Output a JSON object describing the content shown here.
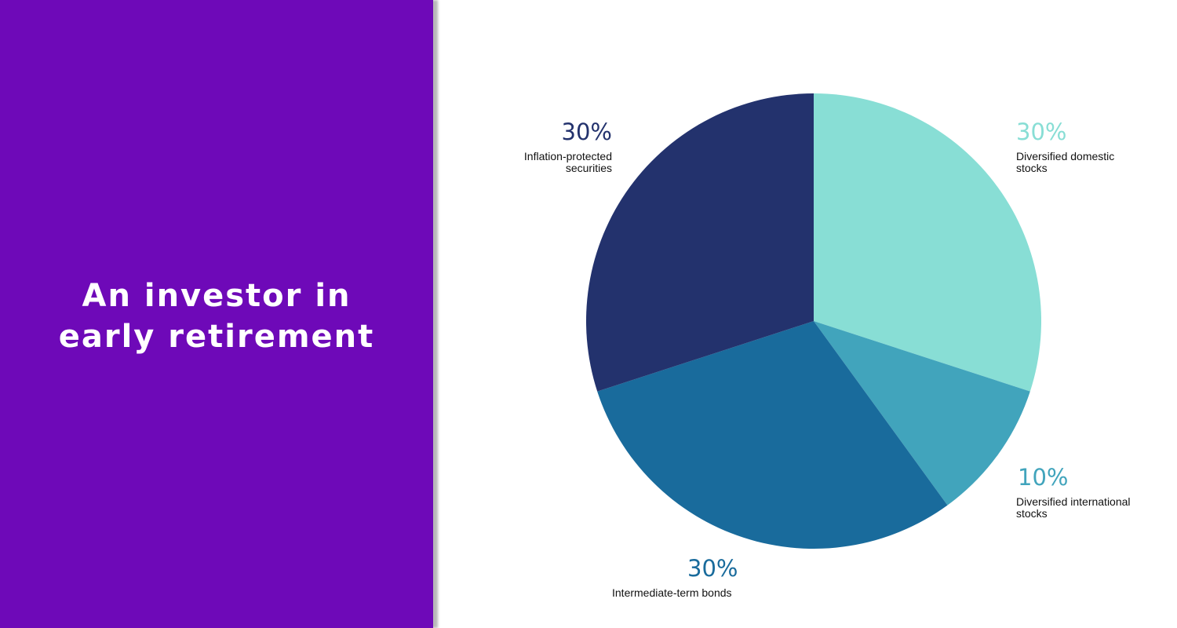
{
  "panel": {
    "title": "An investor in early retirement",
    "background": "#6e09b8"
  },
  "chart_data": {
    "type": "pie",
    "start": "top",
    "direction": "clockwise",
    "slices": [
      {
        "label": "Diversified domestic stocks",
        "value": 30,
        "display": "30%",
        "color": "#88ded5"
      },
      {
        "label": "Diversified international stocks",
        "value": 10,
        "display": "10%",
        "color": "#41a4bc"
      },
      {
        "label": "Intermediate-term bonds",
        "value": 30,
        "display": "30%",
        "color": "#196b9c"
      },
      {
        "label": "Inflation-protected securities",
        "value": 30,
        "display": "30%",
        "color": "#23326d"
      }
    ]
  }
}
